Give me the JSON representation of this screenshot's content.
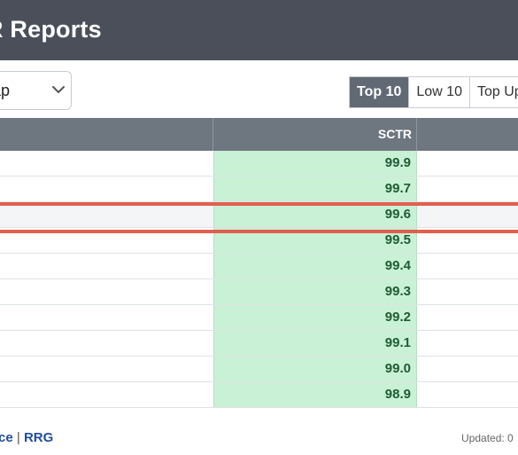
{
  "header": {
    "title": "R Reports"
  },
  "filter": {
    "selected_value": "ap"
  },
  "toggles": [
    {
      "label": "Top 10",
      "active": true
    },
    {
      "label": "Low 10",
      "active": false
    },
    {
      "label": "Top Up",
      "active": false
    }
  ],
  "table": {
    "columns": {
      "sctr": "SCTR"
    },
    "rows": [
      {
        "sctr": "99.9"
      },
      {
        "sctr": "99.7"
      },
      {
        "sctr": "99.6",
        "highlighted": true
      },
      {
        "sctr": "99.5"
      },
      {
        "sctr": "99.4"
      },
      {
        "sctr": "99.3"
      },
      {
        "sctr": "99.2"
      },
      {
        "sctr": "99.1"
      },
      {
        "sctr": "99.0"
      },
      {
        "sctr": "98.9"
      }
    ]
  },
  "footer": {
    "link_1": "ce",
    "separator": "|",
    "link_2": "RRG",
    "updated": "Updated: 0"
  },
  "colors": {
    "header_bg": "#4a4f5a",
    "table_head_bg": "#6e7680",
    "sctr_cell_bg": "#c9f1d5",
    "highlight": "#e0604f"
  },
  "icons": {
    "select_chevron": "chevron-down-icon"
  }
}
